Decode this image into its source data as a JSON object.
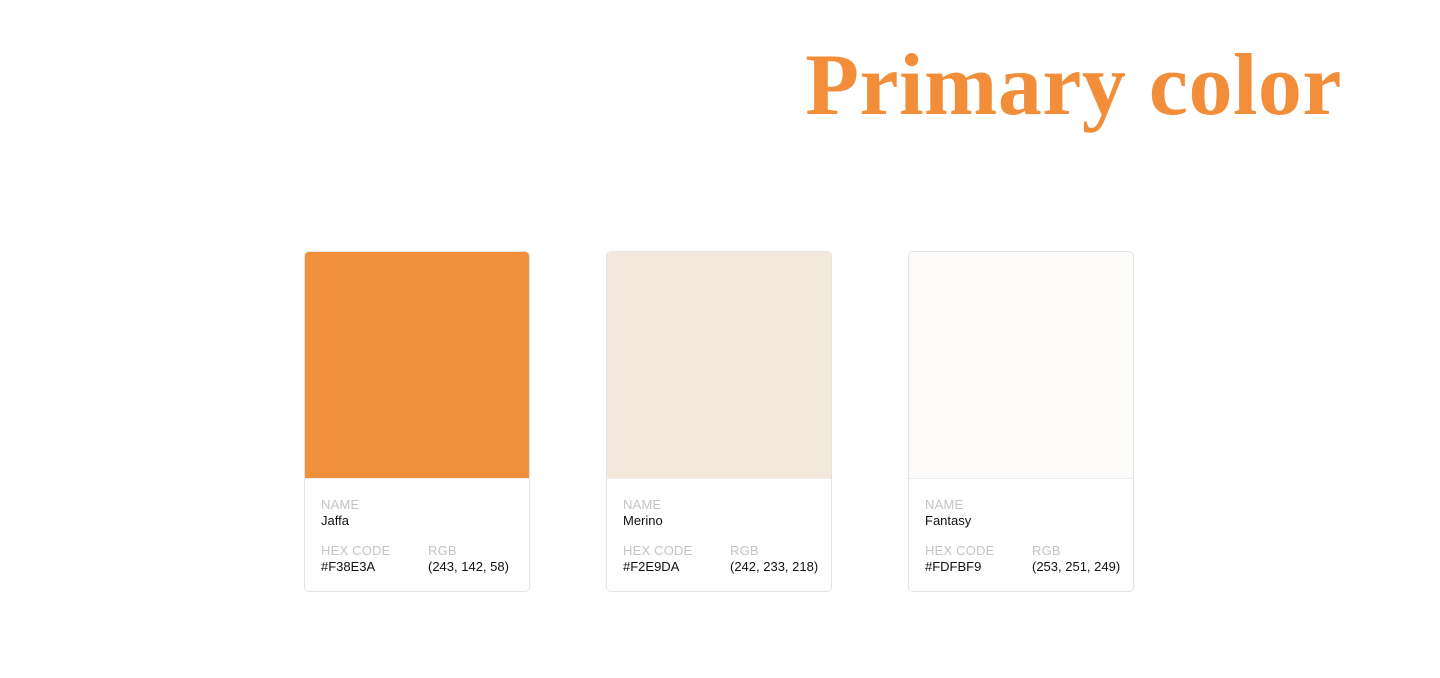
{
  "title": "Primary color",
  "labels": {
    "name": "NAME",
    "hex": "HEX CODE",
    "rgb": "RGB"
  },
  "colors": [
    {
      "name": "Jaffa",
      "hex": "#F38E3A",
      "rgb": "(243, 142, 58)",
      "swatch": "#F28F3B"
    },
    {
      "name": "Merino",
      "hex": "#F2E9DA",
      "rgb": "(242, 233, 218)",
      "swatch": "#F2E9DC"
    },
    {
      "name": "Fantasy",
      "hex": "#FDFBF9",
      "rgb": "(253, 251, 249)",
      "swatch": "#FCFBFA"
    }
  ],
  "accent_color": "#F28E3A"
}
